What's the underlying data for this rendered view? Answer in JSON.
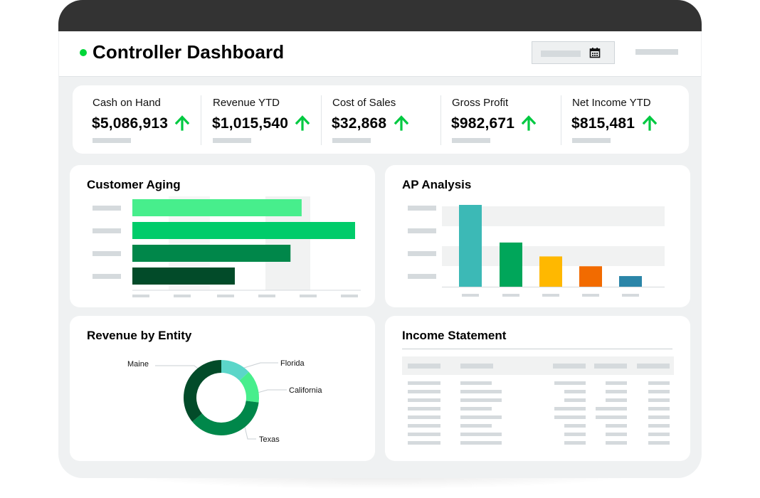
{
  "header": {
    "title": "Controller Dashboard",
    "status_color": "#00d639",
    "date_icon": "calendar-icon"
  },
  "kpis": [
    {
      "label": "Cash on Hand",
      "value": "$5,086,913",
      "trend": "up"
    },
    {
      "label": "Revenue YTD",
      "value": "$1,015,540",
      "trend": "up"
    },
    {
      "label": "Cost of Sales",
      "value": "$32,868",
      "trend": "up"
    },
    {
      "label": "Gross Profit",
      "value": "$982,671",
      "trend": "up"
    },
    {
      "label": "Net Income YTD",
      "value": "$815,481",
      "trend": "up"
    }
  ],
  "colors": {
    "trend_up": "#00c941",
    "frame": "#333333",
    "background": "#eff1f2"
  },
  "customer_aging": {
    "title": "Customer Aging",
    "chart_data": {
      "type": "bar",
      "orientation": "horizontal",
      "categories": [
        "",
        "",
        "",
        ""
      ],
      "values": [
        76,
        100,
        71,
        46
      ],
      "colors": [
        "#47ee8c",
        "#00cc6a",
        "#00874a",
        "#024b29"
      ],
      "xlim": [
        0,
        100
      ]
    }
  },
  "ap_analysis": {
    "title": "AP Analysis",
    "chart_data": {
      "type": "bar",
      "categories": [
        "",
        "",
        "",
        "",
        ""
      ],
      "values": [
        100,
        54,
        37,
        25,
        13
      ],
      "colors": [
        "#3cb9b6",
        "#00a65a",
        "#ffb800",
        "#f26b00",
        "#2b85a8"
      ],
      "ylim": [
        0,
        100
      ]
    }
  },
  "revenue_by_entity": {
    "title": "Revenue by Entity",
    "chart_data": {
      "type": "pie",
      "style": "donut",
      "labels": [
        "Florida",
        "California",
        "Texas",
        "Maine"
      ],
      "values": [
        13,
        14,
        37,
        36
      ],
      "colors": [
        "#5bd6c9",
        "#47ee8c",
        "#00874a",
        "#024b29"
      ]
    }
  },
  "income_statement": {
    "title": "Income Statement"
  }
}
